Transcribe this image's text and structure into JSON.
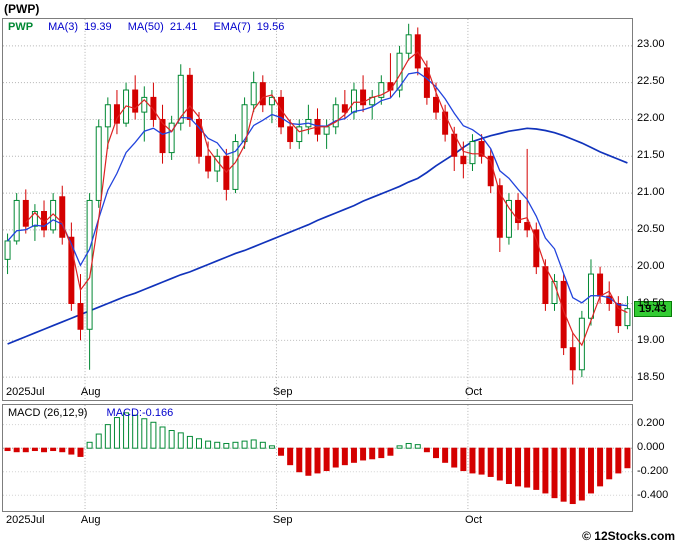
{
  "window": {
    "title": "(PWP)",
    "copyright": "© 12Stocks.com"
  },
  "legend": {
    "symbol": "PWP",
    "ma3_label": "MA(3)",
    "ma3_value": "19.39",
    "ma50_label": "MA(50)",
    "ma50_value": "21.41",
    "ema7_label": "EMA(7)",
    "ema7_value": "19.56"
  },
  "macd_legend": {
    "label": "MACD (26,12,9)",
    "value": "MACD:-0.166"
  },
  "price_badge": "19.43",
  "colors": {
    "up": "#008833",
    "down": "#d40000",
    "ma_fast": "#dd2222",
    "ema": "#2244dd",
    "ma_slow": "#1133bb",
    "grid": "#b4b4b4",
    "legend_blue": "#0000cc",
    "symbol_green": "#008833",
    "macd_value_blue": "#0000cc",
    "badge_bg": "#33cc33"
  },
  "chart_data": {
    "type": "candlestick_with_macd",
    "symbol": "PWP",
    "title": "(PWP)",
    "price_axis": {
      "ticks": [
        "23.00",
        "22.50",
        "22.00",
        "21.50",
        "21.00",
        "20.50",
        "20.00",
        "19.50",
        "19.00",
        "18.50"
      ],
      "range": [
        18.35,
        23.35
      ]
    },
    "macd_axis": {
      "ticks": [
        "0.200",
        "0.000",
        "-0.200",
        "-0.400"
      ],
      "range": [
        -0.5,
        0.32
      ]
    },
    "x_labels": [
      {
        "label": "2025Jul",
        "index": 0
      },
      {
        "label": "Aug",
        "index": 9
      },
      {
        "label": "Sep",
        "index": 30
      },
      {
        "label": "Oct",
        "index": 51
      }
    ],
    "last_price": 19.43,
    "dates": [
      "2025-07-21",
      "2025-07-22",
      "2025-07-23",
      "2025-07-24",
      "2025-07-25",
      "2025-07-28",
      "2025-07-29",
      "2025-07-30",
      "2025-07-31",
      "2025-08-01",
      "2025-08-04",
      "2025-08-05",
      "2025-08-06",
      "2025-08-07",
      "2025-08-08",
      "2025-08-11",
      "2025-08-12",
      "2025-08-13",
      "2025-08-14",
      "2025-08-15",
      "2025-08-18",
      "2025-08-19",
      "2025-08-20",
      "2025-08-21",
      "2025-08-22",
      "2025-08-25",
      "2025-08-26",
      "2025-08-27",
      "2025-08-28",
      "2025-08-29",
      "2025-09-02",
      "2025-09-03",
      "2025-09-04",
      "2025-09-05",
      "2025-09-08",
      "2025-09-09",
      "2025-09-10",
      "2025-09-11",
      "2025-09-12",
      "2025-09-15",
      "2025-09-16",
      "2025-09-17",
      "2025-09-18",
      "2025-09-19",
      "2025-09-22",
      "2025-09-23",
      "2025-09-24",
      "2025-09-25",
      "2025-09-26",
      "2025-09-29",
      "2025-09-30",
      "2025-10-01",
      "2025-10-02",
      "2025-10-03",
      "2025-10-06",
      "2025-10-07",
      "2025-10-08",
      "2025-10-09",
      "2025-10-10",
      "2025-10-13",
      "2025-10-14",
      "2025-10-15",
      "2025-10-16",
      "2025-10-17",
      "2025-10-20",
      "2025-10-21",
      "2025-10-22",
      "2025-10-23",
      "2025-10-24"
    ],
    "candles": [
      [
        20.1,
        20.45,
        19.9,
        20.35
      ],
      [
        20.35,
        21.0,
        20.3,
        20.9
      ],
      [
        20.9,
        21.05,
        20.45,
        20.55
      ],
      [
        20.55,
        20.85,
        20.35,
        20.75
      ],
      [
        20.75,
        20.9,
        20.4,
        20.5
      ],
      [
        20.5,
        21.0,
        20.45,
        20.9
      ],
      [
        20.95,
        21.1,
        20.3,
        20.4
      ],
      [
        20.4,
        20.6,
        19.4,
        19.5
      ],
      [
        19.5,
        19.9,
        19.0,
        19.15
      ],
      [
        19.15,
        21.0,
        18.6,
        20.9
      ],
      [
        20.9,
        22.0,
        20.8,
        21.9
      ],
      [
        21.9,
        22.3,
        21.6,
        22.2
      ],
      [
        22.2,
        22.4,
        21.8,
        21.95
      ],
      [
        21.95,
        22.5,
        21.9,
        22.4
      ],
      [
        22.4,
        22.6,
        22.0,
        22.1
      ],
      [
        22.1,
        22.45,
        21.7,
        22.3
      ],
      [
        22.3,
        22.5,
        21.9,
        22.0
      ],
      [
        22.0,
        22.2,
        21.4,
        21.55
      ],
      [
        21.55,
        22.05,
        21.45,
        21.95
      ],
      [
        21.95,
        22.75,
        21.85,
        22.6
      ],
      [
        22.6,
        22.7,
        21.9,
        22.0
      ],
      [
        22.0,
        22.1,
        21.4,
        21.5
      ],
      [
        21.5,
        21.7,
        21.2,
        21.3
      ],
      [
        21.3,
        21.6,
        21.15,
        21.5
      ],
      [
        21.5,
        21.6,
        20.9,
        21.05
      ],
      [
        21.05,
        21.8,
        21.0,
        21.7
      ],
      [
        21.7,
        22.3,
        21.6,
        22.2
      ],
      [
        22.2,
        22.65,
        22.1,
        22.5
      ],
      [
        22.5,
        22.6,
        22.1,
        22.2
      ],
      [
        22.2,
        22.4,
        21.95,
        22.3
      ],
      [
        22.3,
        22.4,
        21.8,
        21.9
      ],
      [
        21.9,
        22.0,
        21.6,
        21.7
      ],
      [
        21.7,
        22.0,
        21.6,
        21.9
      ],
      [
        21.9,
        22.2,
        21.8,
        22.0
      ],
      [
        22.0,
        22.15,
        21.7,
        21.8
      ],
      [
        21.8,
        22.0,
        21.6,
        21.9
      ],
      [
        21.9,
        22.3,
        21.8,
        22.2
      ],
      [
        22.2,
        22.4,
        22.0,
        22.1
      ],
      [
        22.1,
        22.5,
        22.0,
        22.4
      ],
      [
        22.4,
        22.6,
        22.1,
        22.2
      ],
      [
        22.2,
        22.4,
        22.0,
        22.3
      ],
      [
        22.3,
        22.6,
        22.2,
        22.5
      ],
      [
        22.5,
        22.9,
        22.3,
        22.4
      ],
      [
        22.4,
        23.0,
        22.3,
        22.9
      ],
      [
        22.9,
        23.3,
        22.8,
        23.15
      ],
      [
        23.15,
        23.25,
        22.6,
        22.7
      ],
      [
        22.7,
        22.8,
        22.2,
        22.3
      ],
      [
        22.3,
        22.5,
        22.0,
        22.1
      ],
      [
        22.1,
        22.2,
        21.7,
        21.8
      ],
      [
        21.8,
        21.9,
        21.3,
        21.5
      ],
      [
        21.5,
        21.7,
        21.2,
        21.4
      ],
      [
        21.4,
        21.8,
        21.3,
        21.7
      ],
      [
        21.7,
        21.8,
        21.4,
        21.5
      ],
      [
        21.5,
        21.6,
        21.0,
        21.1
      ],
      [
        21.1,
        21.2,
        20.2,
        20.4
      ],
      [
        20.4,
        21.0,
        20.3,
        20.9
      ],
      [
        20.9,
        21.0,
        20.5,
        20.6
      ],
      [
        20.6,
        21.6,
        20.4,
        20.5
      ],
      [
        20.5,
        20.6,
        19.9,
        20.0
      ],
      [
        20.0,
        20.1,
        19.4,
        19.5
      ],
      [
        19.5,
        19.9,
        19.4,
        19.8
      ],
      [
        19.8,
        19.9,
        18.8,
        18.9
      ],
      [
        18.9,
        19.1,
        18.4,
        18.6
      ],
      [
        18.6,
        19.4,
        18.5,
        19.3
      ],
      [
        19.3,
        20.1,
        19.2,
        19.9
      ],
      [
        19.9,
        20.0,
        19.5,
        19.6
      ],
      [
        19.6,
        19.8,
        19.4,
        19.5
      ],
      [
        19.5,
        19.6,
        19.1,
        19.2
      ],
      [
        19.2,
        19.6,
        19.15,
        19.43
      ]
    ],
    "overlays": {
      "ma3_period": 3,
      "ema7_period": 7,
      "ma50": [
        18.95,
        19.0,
        19.05,
        19.1,
        19.15,
        19.2,
        19.25,
        19.3,
        19.35,
        19.4,
        19.45,
        19.5,
        19.55,
        19.6,
        19.64,
        19.69,
        19.74,
        19.79,
        19.84,
        19.89,
        19.93,
        19.98,
        20.03,
        20.08,
        20.13,
        20.18,
        20.22,
        20.27,
        20.32,
        20.37,
        20.42,
        20.47,
        20.52,
        20.57,
        20.63,
        20.68,
        20.73,
        20.78,
        20.83,
        20.89,
        20.94,
        20.99,
        21.04,
        21.09,
        21.15,
        21.2,
        21.28,
        21.37,
        21.45,
        21.53,
        21.62,
        21.7,
        21.74,
        21.78,
        21.81,
        21.84,
        21.86,
        21.88,
        21.87,
        21.85,
        21.82,
        21.78,
        21.73,
        21.68,
        21.62,
        21.56,
        21.51,
        21.46,
        21.41
      ]
    },
    "macd_histogram": [
      -0.02,
      -0.03,
      -0.03,
      -0.02,
      -0.03,
      -0.02,
      -0.03,
      -0.05,
      -0.07,
      0.05,
      0.12,
      0.2,
      0.26,
      0.3,
      0.28,
      0.25,
      0.22,
      0.18,
      0.15,
      0.13,
      0.1,
      0.08,
      0.06,
      0.05,
      0.04,
      0.05,
      0.06,
      0.07,
      0.05,
      0.02,
      -0.06,
      -0.14,
      -0.2,
      -0.23,
      -0.21,
      -0.19,
      -0.16,
      -0.14,
      -0.12,
      -0.1,
      -0.09,
      -0.08,
      -0.06,
      0.02,
      0.04,
      0.03,
      -0.03,
      -0.08,
      -0.12,
      -0.16,
      -0.19,
      -0.21,
      -0.22,
      -0.24,
      -0.27,
      -0.3,
      -0.32,
      -0.33,
      -0.35,
      -0.38,
      -0.42,
      -0.45,
      -0.47,
      -0.44,
      -0.38,
      -0.32,
      -0.26,
      -0.21,
      -0.166
    ]
  }
}
